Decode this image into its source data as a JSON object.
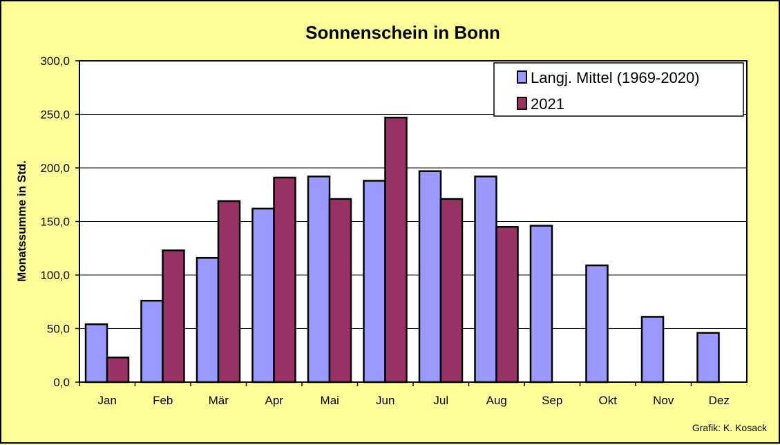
{
  "chart_data": {
    "type": "bar",
    "title": "Sonnenschein in Bonn",
    "xlabel": "",
    "ylabel": "Monatssumme in Std.",
    "ylim": [
      0,
      300
    ],
    "yticks": [
      "0,0",
      "50,0",
      "100,0",
      "150,0",
      "200,0",
      "250,0",
      "300,0"
    ],
    "categories": [
      "Jan",
      "Feb",
      "Mär",
      "Apr",
      "Mai",
      "Jun",
      "Jul",
      "Aug",
      "Sep",
      "Okt",
      "Nov",
      "Dez"
    ],
    "series": [
      {
        "name": "Langj. Mittel (1969-2020)",
        "color": "#9999ff",
        "values": [
          54,
          76,
          116,
          162,
          192,
          188,
          197,
          192,
          146,
          109,
          61,
          46
        ]
      },
      {
        "name": "2021",
        "color": "#993366",
        "values": [
          23,
          123,
          169,
          191,
          171,
          247,
          171,
          145,
          null,
          null,
          null,
          null
        ]
      }
    ],
    "grid": "horizontal",
    "legend_position": "top-right",
    "background": "#ffff99",
    "plot_background": "#ffffff"
  },
  "credit": "Grafik:  K. Kosack"
}
